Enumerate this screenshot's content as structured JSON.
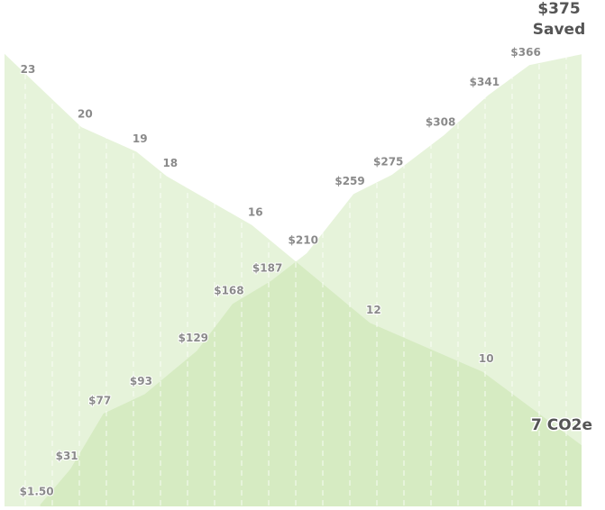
{
  "chart_data": {
    "type": "area",
    "xlim": [
      0,
      21
    ],
    "ylim": [
      0,
      420
    ],
    "y2lim": [
      4.5,
      25.2
    ],
    "series": [
      {
        "name": "Saved",
        "color": "#b8dc94",
        "x": [
          1.3,
          2.4,
          3.6,
          5.1,
          7.0,
          8.3,
          9.7,
          11,
          12.7,
          14.1,
          16,
          17.6,
          19.1,
          21
        ],
        "values": [
          1.5,
          31,
          77,
          93,
          129,
          168,
          187,
          210,
          259,
          275,
          308,
          341,
          366,
          375
        ],
        "value_labels": [
          "$1.50",
          "$31",
          "$77",
          "$93",
          "$129",
          "$168",
          "$187",
          "$210",
          "$259",
          "$275",
          "$308",
          "$341",
          "$366",
          "$375"
        ]
      },
      {
        "name": null,
        "color": "#b8dc94",
        "axis": "y2",
        "x": [
          0,
          2.8,
          4.8,
          5.9,
          9,
          13.3,
          17.4,
          21
        ],
        "values": [
          23,
          20,
          19,
          18,
          16,
          12,
          10,
          7
        ],
        "value_labels": [
          "23",
          "20",
          "19",
          "18",
          "16",
          "12",
          "10",
          "7 CO2e"
        ]
      }
    ]
  }
}
